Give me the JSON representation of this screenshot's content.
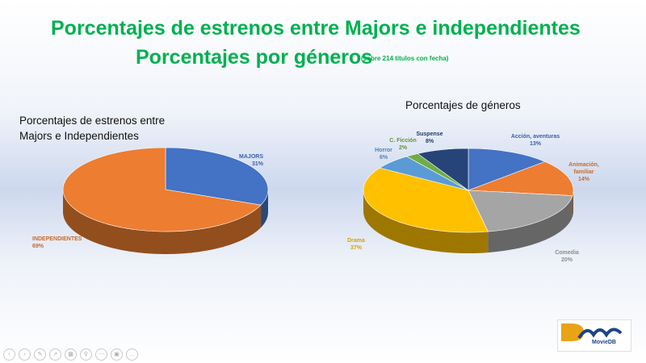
{
  "slide": {
    "title_line1": "Porcentajes de estrenos entre Majors e independientes",
    "title_line2": "Porcentajes por géneros",
    "title_note": "(sobre 214 títulos con fecha)"
  },
  "chart_data": [
    {
      "type": "pie",
      "title_lines": [
        "Porcentajes de estrenos entre",
        "Majors e Independientes"
      ],
      "slices": [
        {
          "label": "MAJORS",
          "value": 31,
          "value_label": "31%",
          "color": "#4472c4"
        },
        {
          "label": "INDEPENDIENTES",
          "value": 69,
          "value_label": "69%",
          "color": "#ed7d31"
        }
      ]
    },
    {
      "type": "pie",
      "title": "Porcentajes de géneros",
      "slices": [
        {
          "label": "Acción, aventuras",
          "value": 13,
          "value_label": "13%",
          "color": "#4472c4"
        },
        {
          "label": "Animación, familiar",
          "value": 14,
          "value_label": "14%",
          "color": "#ed7d31"
        },
        {
          "label": "Comedia",
          "value": 20,
          "value_label": "20%",
          "color": "#a5a5a5"
        },
        {
          "label": "Drama",
          "value": 37,
          "value_label": "37%",
          "color": "#ffc000"
        },
        {
          "label": "Horror",
          "value": 6,
          "value_label": "6%",
          "color": "#5b9bd5"
        },
        {
          "label": "C. Ficción",
          "value": 2,
          "value_label": "2%",
          "color": "#70ad47"
        },
        {
          "label": "Suspense",
          "value": 8,
          "value_label": "8%",
          "color": "#264478"
        }
      ]
    }
  ],
  "logo": {
    "text": "MovieDB"
  },
  "toolbar": {
    "icons": [
      "prev-icon",
      "next-icon",
      "pen-icon",
      "pointer-icon",
      "slides-icon",
      "zoom-icon",
      "more-icon",
      "camera-icon",
      "options-icon"
    ]
  }
}
